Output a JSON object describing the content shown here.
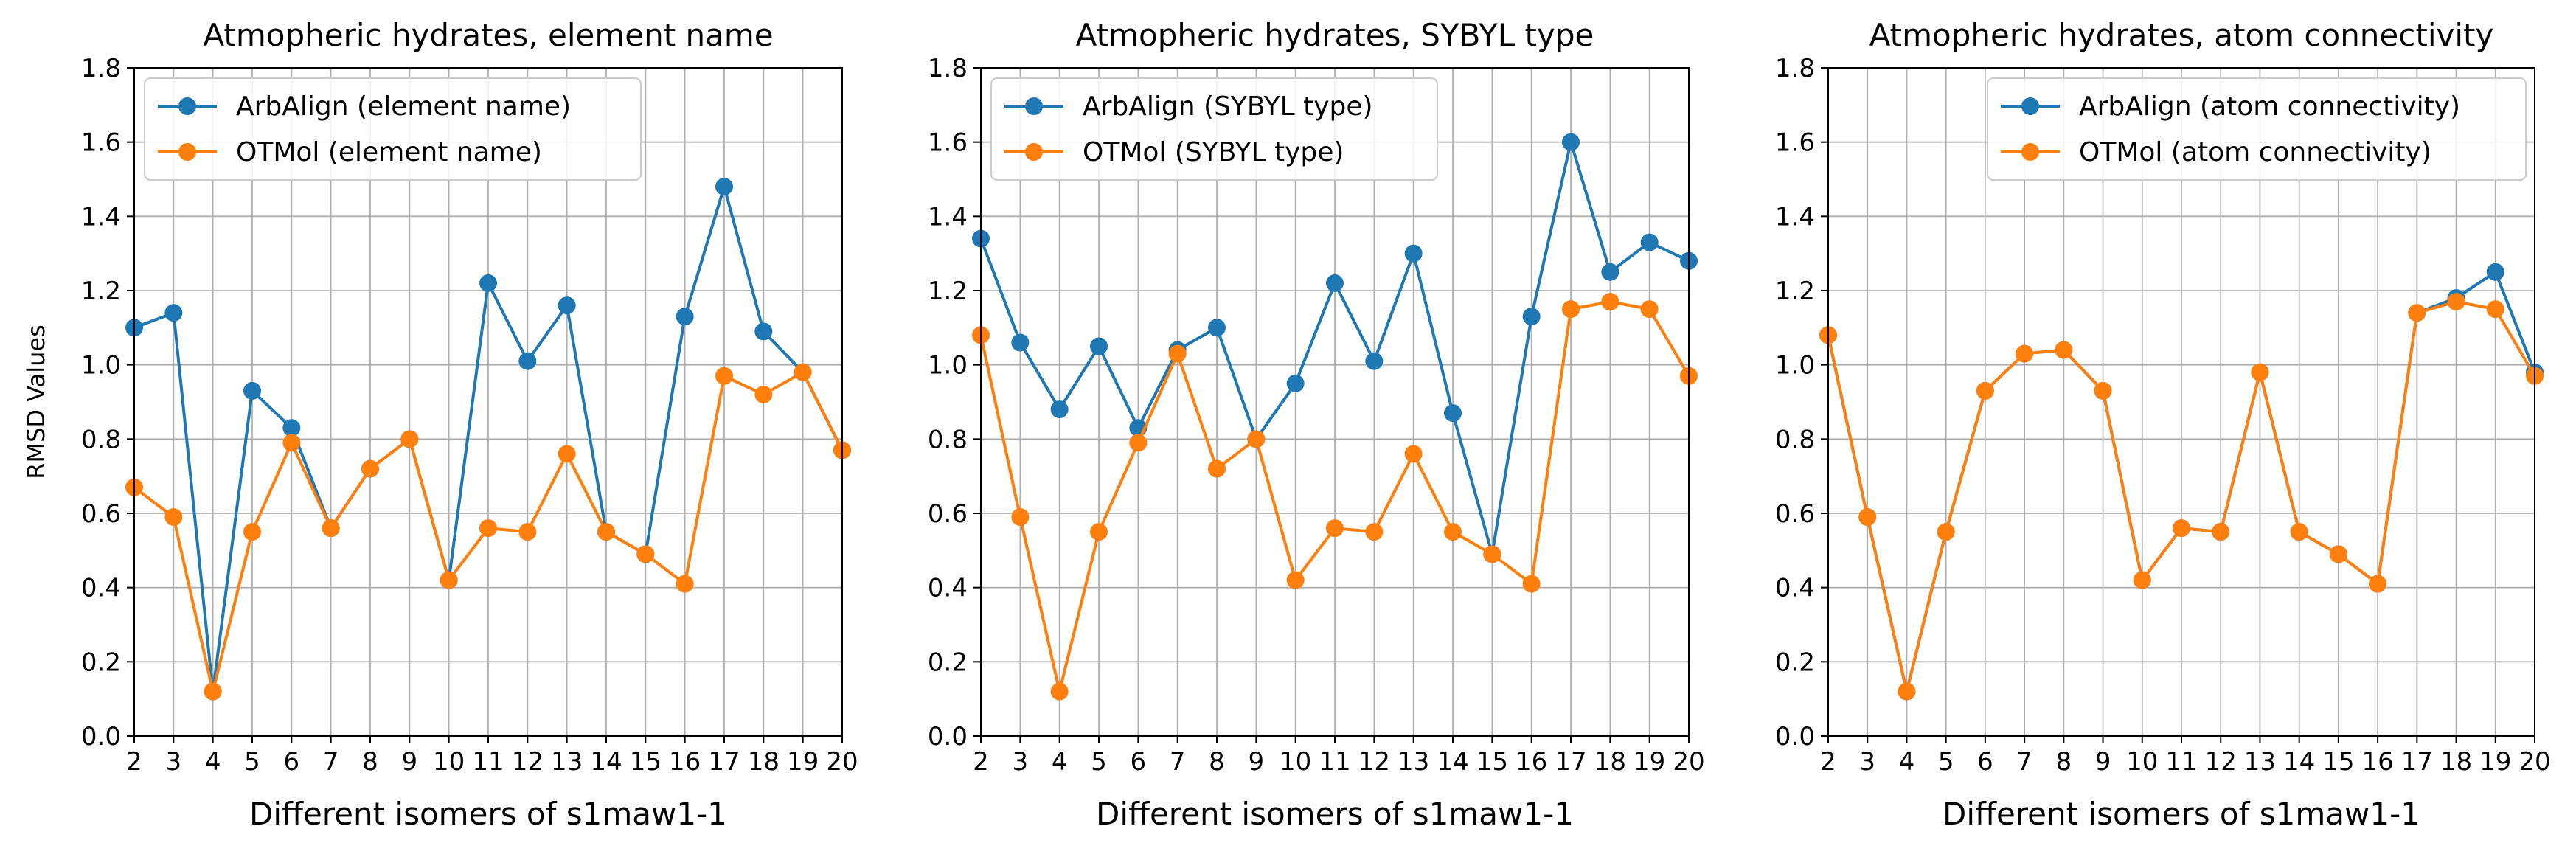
{
  "chart_data": [
    {
      "type": "line",
      "title": "Atmopheric hydrates, element name",
      "xlabel": "Different isomers of s1maw1-1",
      "ylabel": "RMSD Values",
      "x": [
        "2",
        "3",
        "4",
        "5",
        "6",
        "7",
        "8",
        "9",
        "10",
        "11",
        "12",
        "13",
        "14",
        "15",
        "16",
        "17",
        "18",
        "19",
        "20"
      ],
      "ylim": [
        0,
        1.8
      ],
      "yticks": [
        "0.0",
        "0.2",
        "0.4",
        "0.6",
        "0.8",
        "1.0",
        "1.2",
        "1.4",
        "1.6",
        "1.8"
      ],
      "grid": true,
      "legend_position": "upper-left",
      "series": [
        {
          "name": "ArbAlign (element name)",
          "color": "#1f77b4",
          "values": [
            1.1,
            1.14,
            0.12,
            0.93,
            0.83,
            0.56,
            0.72,
            0.8,
            0.42,
            1.22,
            1.01,
            1.16,
            0.55,
            0.49,
            1.13,
            1.48,
            1.09,
            0.98,
            0.77
          ]
        },
        {
          "name": "OTMol (element name)",
          "color": "#ff7f0e",
          "values": [
            0.67,
            0.59,
            0.12,
            0.55,
            0.79,
            0.56,
            0.72,
            0.8,
            0.42,
            0.56,
            0.55,
            0.76,
            0.55,
            0.49,
            0.41,
            0.97,
            0.92,
            0.98,
            0.77
          ]
        }
      ]
    },
    {
      "type": "line",
      "title": "Atmopheric hydrates, SYBYL type",
      "xlabel": "Different isomers of s1maw1-1",
      "ylabel": "",
      "x": [
        "2",
        "3",
        "4",
        "5",
        "6",
        "7",
        "8",
        "9",
        "10",
        "11",
        "12",
        "13",
        "14",
        "15",
        "16",
        "17",
        "18",
        "19",
        "20"
      ],
      "ylim": [
        0,
        1.8
      ],
      "yticks": [
        "0.0",
        "0.2",
        "0.4",
        "0.6",
        "0.8",
        "1.0",
        "1.2",
        "1.4",
        "1.6",
        "1.8"
      ],
      "grid": true,
      "legend_position": "upper-left",
      "series": [
        {
          "name": "ArbAlign (SYBYL type)",
          "color": "#1f77b4",
          "values": [
            1.34,
            1.06,
            0.88,
            1.05,
            0.83,
            1.04,
            1.1,
            0.8,
            0.95,
            1.22,
            1.01,
            1.3,
            0.87,
            0.49,
            1.13,
            1.6,
            1.25,
            1.33,
            1.28
          ]
        },
        {
          "name": "OTMol (SYBYL type)",
          "color": "#ff7f0e",
          "values": [
            1.08,
            0.59,
            0.12,
            0.55,
            0.79,
            1.03,
            0.72,
            0.8,
            0.42,
            0.56,
            0.55,
            0.76,
            0.55,
            0.49,
            0.41,
            1.15,
            1.17,
            1.15,
            0.97
          ]
        }
      ]
    },
    {
      "type": "line",
      "title": "Atmopheric hydrates, atom connectivity",
      "xlabel": "Different isomers of s1maw1-1",
      "ylabel": "",
      "x": [
        "2",
        "3",
        "4",
        "5",
        "6",
        "7",
        "8",
        "9",
        "10",
        "11",
        "12",
        "13",
        "14",
        "15",
        "16",
        "17",
        "18",
        "19",
        "20"
      ],
      "ylim": [
        0,
        1.8
      ],
      "yticks": [
        "0.0",
        "0.2",
        "0.4",
        "0.6",
        "0.8",
        "1.0",
        "1.2",
        "1.4",
        "1.6",
        "1.8"
      ],
      "grid": true,
      "legend_position": "upper-right",
      "series": [
        {
          "name": "ArbAlign (atom connectivity)",
          "color": "#1f77b4",
          "values": [
            1.08,
            0.59,
            0.12,
            0.55,
            0.93,
            1.03,
            1.04,
            0.93,
            0.42,
            0.56,
            0.55,
            0.98,
            0.55,
            0.49,
            0.41,
            1.14,
            1.18,
            1.25,
            0.98
          ]
        },
        {
          "name": "OTMol (atom connectivity)",
          "color": "#ff7f0e",
          "values": [
            1.08,
            0.59,
            0.12,
            0.55,
            0.93,
            1.03,
            1.04,
            0.93,
            0.42,
            0.56,
            0.55,
            0.98,
            0.55,
            0.49,
            0.41,
            1.14,
            1.17,
            1.15,
            0.97
          ]
        }
      ]
    }
  ]
}
